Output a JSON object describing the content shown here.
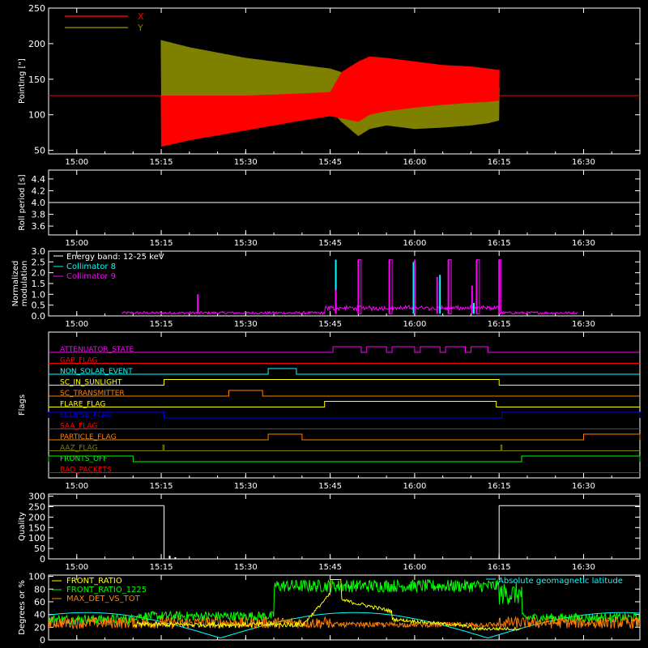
{
  "time_axis": {
    "range_minutes": [
      -5,
      100
    ],
    "ticks": [
      {
        "m": 0,
        "label": "15:00"
      },
      {
        "m": 15,
        "label": "15:15"
      },
      {
        "m": 30,
        "label": "15:30"
      },
      {
        "m": 45,
        "label": "15:45"
      },
      {
        "m": 60,
        "label": "16:00"
      },
      {
        "m": 75,
        "label": "16:15"
      },
      {
        "m": 90,
        "label": "16:30"
      }
    ]
  },
  "chart_data": [
    {
      "type": "line",
      "ylabel": "Pointing [\"]",
      "ylim": [
        45,
        250
      ],
      "yticks": [
        50,
        100,
        150,
        200,
        250
      ],
      "series": [
        {
          "name": "X",
          "color": "#ff0000",
          "baseline": 127,
          "envelope": {
            "t": [
              15,
              20,
              30,
              40,
              45,
              47,
              50,
              52,
              55,
              60,
              65,
              70,
              73,
              75
            ],
            "low": [
              55,
              64,
              78,
              92,
              98,
              95,
              90,
              100,
              105,
              110,
              114,
              117,
              118,
              120
            ],
            "high": [
              127,
              127,
              127,
              130,
              132,
              160,
              175,
              182,
              180,
              175,
              170,
              168,
              165,
              163
            ]
          }
        },
        {
          "name": "Y",
          "color": "#808000",
          "baseline": 127,
          "envelope": {
            "t": [
              15,
              20,
              30,
              40,
              45,
              47,
              50,
              52,
              55,
              60,
              65,
              70,
              73,
              75
            ],
            "low": [
              118,
              118,
              116,
              112,
              108,
              90,
              70,
              80,
              85,
              80,
              82,
              85,
              88,
              92
            ],
            "high": [
              205,
              195,
              180,
              170,
              165,
              160,
              145,
              150,
              148,
              155,
              150,
              145,
              140,
              138
            ]
          }
        }
      ]
    },
    {
      "type": "line",
      "ylabel": "Roll period [s]",
      "ylim": [
        3.45,
        4.55
      ],
      "yticks": [
        3.6,
        3.8,
        4.0,
        4.2,
        4.4
      ],
      "yticklabels": [
        "3.6",
        "3.8",
        "4.0",
        "4.2",
        "4.4"
      ],
      "series": [
        {
          "name": "",
          "color": "#ffffff",
          "constant": 4.0
        }
      ]
    },
    {
      "type": "line",
      "ylabel": "Normalized modulation",
      "ylim": [
        0,
        3.0
      ],
      "yticks": [
        0.0,
        0.5,
        1.0,
        1.5,
        2.0,
        2.5,
        3.0
      ],
      "yticklabels": [
        "0.0",
        "0.5",
        "1.0",
        "1.5",
        "2.0",
        "2.5",
        "3.0"
      ],
      "legend_title": "Energy band: 12-25 keV",
      "series": [
        {
          "name": "Collimator 8",
          "color": "#00ffff",
          "spikes": [
            [
              46,
              2.6
            ],
            [
              59.8,
              2.5
            ],
            [
              64.5,
              1.9
            ],
            [
              70.5,
              0.6
            ]
          ]
        },
        {
          "name": "Collimator 9",
          "color": "#ff00ff",
          "spikes": [
            [
              21.5,
              1.0
            ],
            [
              46,
              1.2
            ],
            [
              50,
              2.6
            ],
            [
              55.5,
              2.6
            ],
            [
              60,
              2.6
            ],
            [
              64,
              1.8
            ],
            [
              66,
              2.6
            ],
            [
              70.2,
              1.4
            ],
            [
              71,
              2.6
            ],
            [
              75,
              2.6
            ]
          ],
          "noise_range": [
            8,
            89
          ]
        }
      ]
    },
    {
      "type": "line",
      "ylabel": "Flags",
      "flags": [
        {
          "name": "ATTENUATOR_STATE",
          "color": "#ff00ff",
          "high": [
            [
              45.5,
              50.5
            ],
            [
              51.5,
              55
            ],
            [
              56,
              60
            ],
            [
              61,
              64.5
            ],
            [
              65.5,
              69
            ],
            [
              70,
              73
            ]
          ]
        },
        {
          "name": "GAP_FLAG",
          "color": "#ff0000",
          "high": []
        },
        {
          "name": "NON_SOLAR_EVENT",
          "color": "#00ffff",
          "high": [
            [
              34,
              39
            ]
          ]
        },
        {
          "name": "SC_IN_SUNLIGHT",
          "color": "#ffff00",
          "high": [
            [
              15.5,
              75
            ]
          ]
        },
        {
          "name": "SC_TRANSMITTER",
          "color": "#ff8000",
          "high": [
            [
              27,
              33
            ]
          ]
        },
        {
          "name": "FLARE_FLAG",
          "color": "#ffff00",
          "high": [
            [
              44,
              74.5
            ]
          ]
        },
        {
          "name": "ECLIPSE_FLAG",
          "color": "#0000ff",
          "high": [
            [
              -5,
              15.5
            ],
            [
              75.5,
              100
            ]
          ]
        },
        {
          "name": "SAA_FLAG",
          "color": "#ff0000",
          "high": []
        },
        {
          "name": "PARTICLE_FLAG",
          "color": "#ff8000",
          "high": [
            [
              34,
              40
            ],
            [
              90,
              100
            ]
          ]
        },
        {
          "name": "AAZ_FLAG",
          "color": "#808000",
          "high": [
            [
              15.3,
              15.5
            ],
            [
              75.3,
              75.5
            ]
          ]
        },
        {
          "name": "FRONTS_OFF",
          "color": "#00ff00",
          "high": [
            [
              -5,
              10
            ],
            [
              79,
              100
            ]
          ]
        },
        {
          "name": "BAD_PACKETS",
          "color": "#ff0000",
          "high": []
        }
      ]
    },
    {
      "type": "line",
      "ylabel": "Quality",
      "ylim": [
        0,
        310
      ],
      "yticks": [
        0,
        50,
        100,
        150,
        200,
        250,
        300
      ],
      "series": [
        {
          "name": "",
          "color": "#ffffff",
          "segments": [
            [
              -5,
              15.5,
              255
            ],
            [
              15.5,
              75,
              0
            ],
            [
              75,
              100,
              255
            ]
          ],
          "spikes": [
            [
              16.5,
              15
            ],
            [
              17.5,
              8
            ]
          ]
        }
      ]
    },
    {
      "type": "line",
      "ylabel": "Degrees or %",
      "ylim": [
        0,
        102
      ],
      "yticks": [
        0,
        20,
        40,
        60,
        80,
        100
      ],
      "series": [
        {
          "name": "FRONT_RATIO",
          "color": "#ffff00"
        },
        {
          "name": "FRONT_RATIO_1225",
          "color": "#00ff00"
        },
        {
          "name": "MAX_DET_VS_TOT",
          "color": "#ff8000"
        },
        {
          "name": "Absolute geomagnetic latitude",
          "color": "#00ffff"
        }
      ]
    }
  ]
}
